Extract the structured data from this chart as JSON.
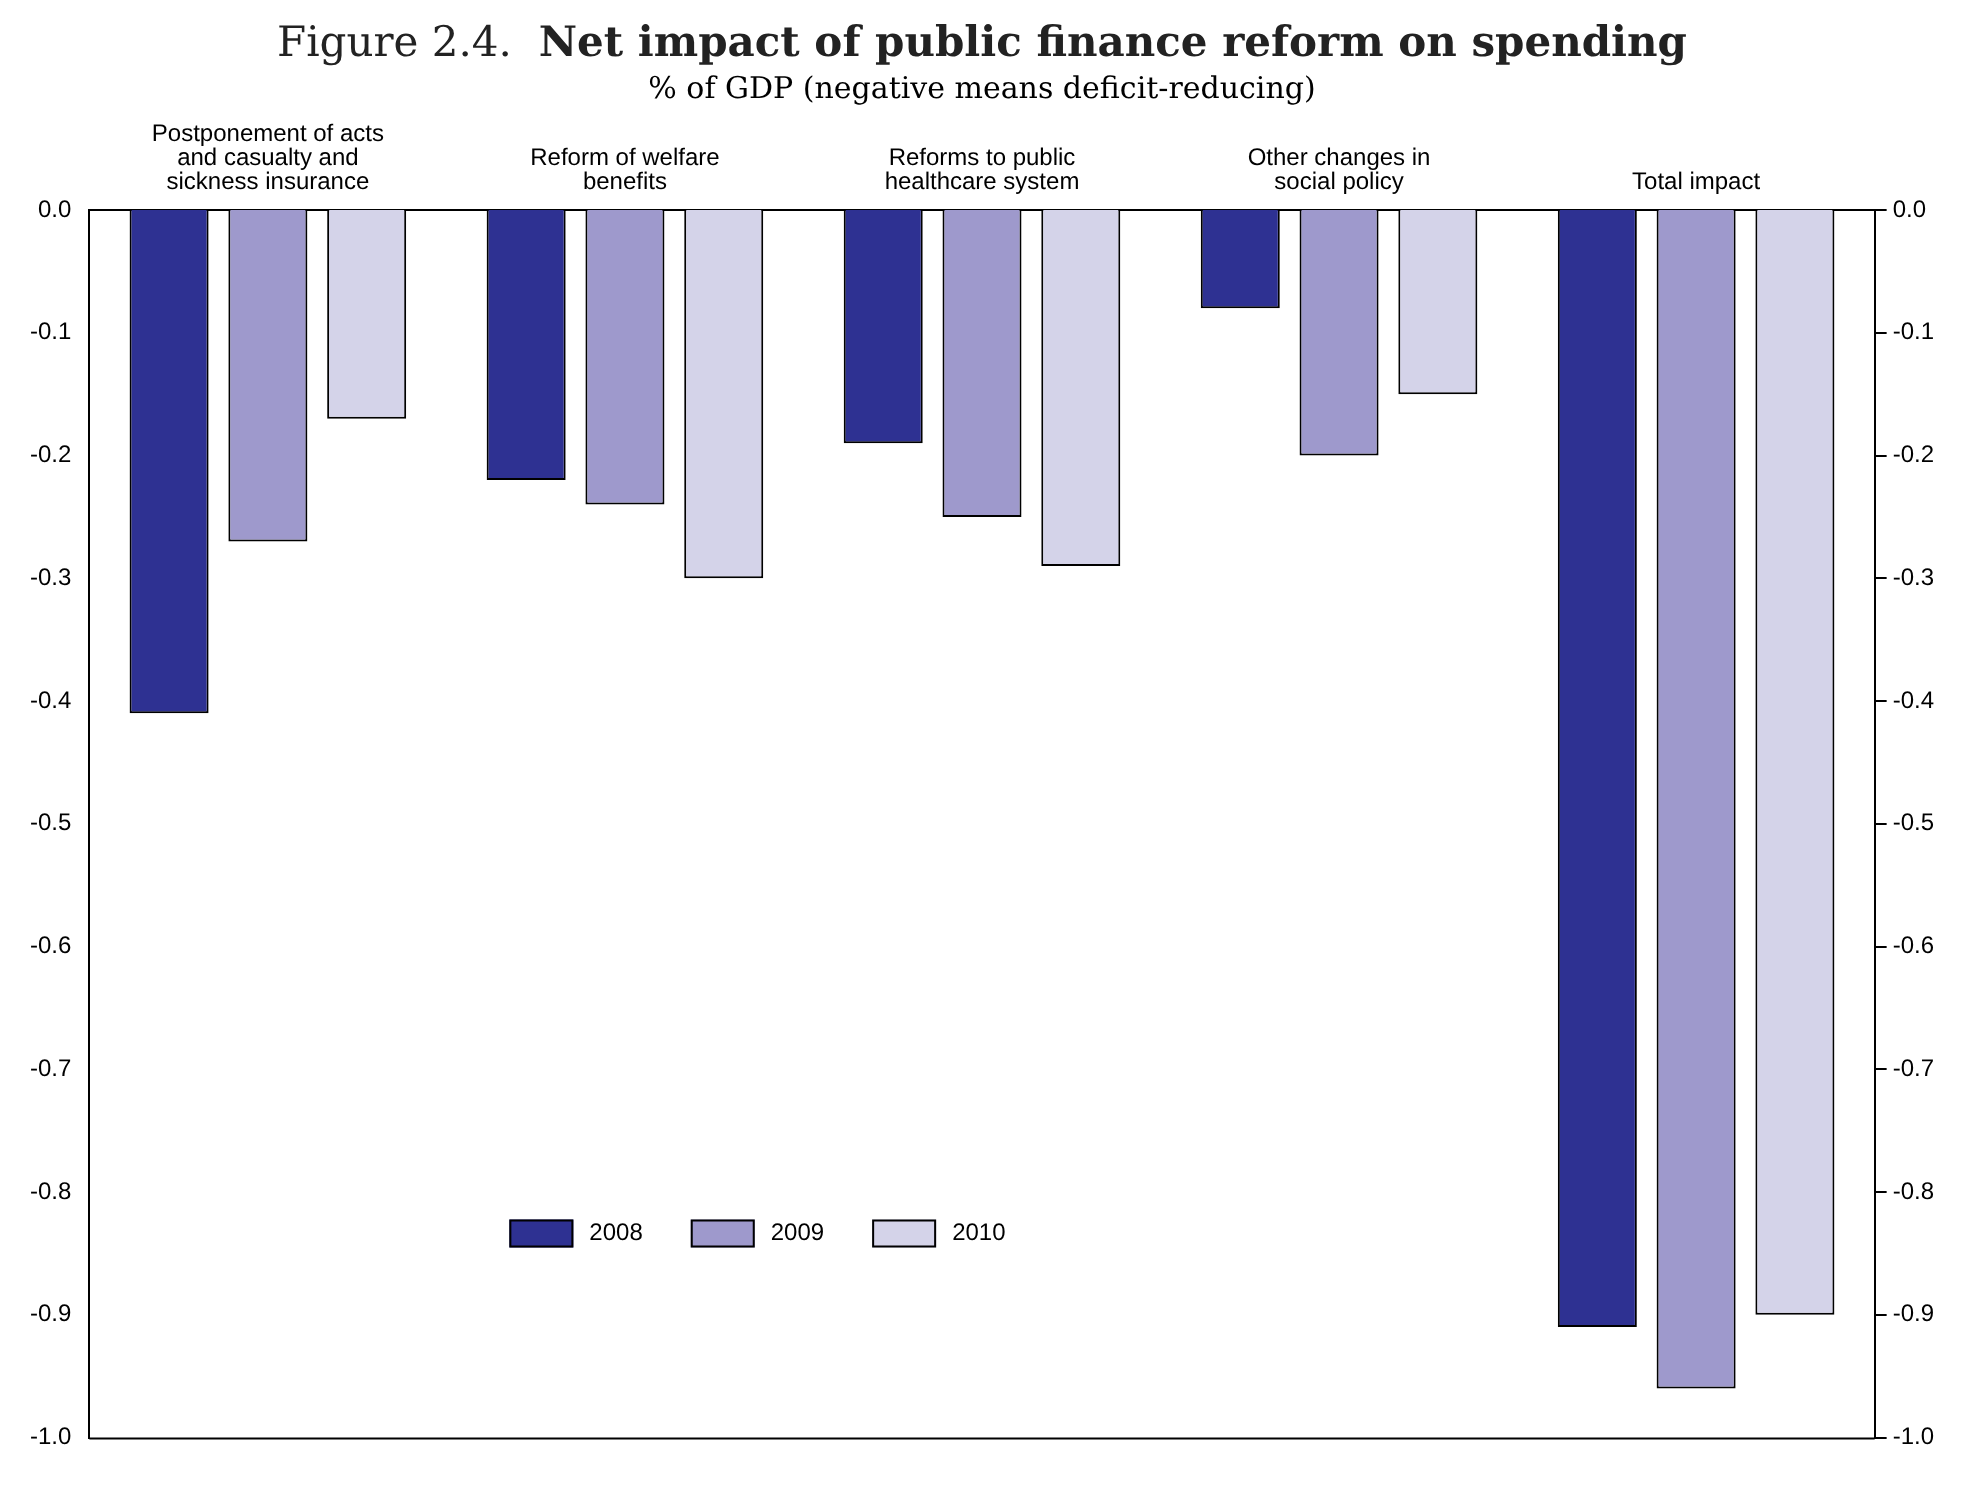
{
  "chart_data": {
    "type": "bar",
    "title": "Figure 2.4. Net impact of public finance reform on spending",
    "subtitle": "% of GDP (negative means deficit-reducing)",
    "categories": [
      "Postponement of acts and casualty and sickness insurance",
      "Reform of welfare benefits",
      "Reforms to public healthcare system",
      "Other changes in social policy",
      "Total impact"
    ],
    "series": [
      {
        "name": "2008",
        "color": "#2e3192",
        "values": [
          -0.41,
          -0.22,
          -0.19,
          -0.08,
          -0.91
        ]
      },
      {
        "name": "2009",
        "color": "#9e99cc",
        "values": [
          -0.27,
          -0.24,
          -0.25,
          -0.2,
          -0.96
        ]
      },
      {
        "name": "2010",
        "color": "#d4d3e9",
        "values": [
          -0.17,
          -0.3,
          -0.29,
          -0.15,
          -0.9
        ]
      }
    ],
    "ylim": [
      -1.0,
      0.0
    ],
    "yticks": [
      {
        "value": 0,
        "label": "0.0"
      },
      {
        "value": -0.1,
        "label": "-0.1"
      },
      {
        "value": -0.2,
        "label": "-0.2"
      },
      {
        "value": -0.3,
        "label": "-0.3"
      },
      {
        "value": -0.4,
        "label": "-0.4"
      },
      {
        "value": -0.5,
        "label": "-0.5"
      },
      {
        "value": -0.6,
        "label": "-0.6"
      },
      {
        "value": -0.7,
        "label": "-0.7"
      },
      {
        "value": -0.8,
        "label": "-0.8"
      },
      {
        "value": -0.9,
        "label": "-0.9"
      },
      {
        "value": -1.0,
        "label": "-1.0"
      }
    ],
    "y2lim": [
      -1.0,
      0.0
    ],
    "y2ticks": [
      {
        "value": 0,
        "label": "0.0"
      },
      {
        "value": -0.1,
        "label": "-0.1"
      },
      {
        "value": -0.2,
        "label": "-0.2"
      },
      {
        "value": -0.3,
        "label": "-0.3"
      },
      {
        "value": -0.4,
        "label": "-0.4"
      },
      {
        "value": -0.5,
        "label": "-0.5"
      },
      {
        "value": -0.6,
        "label": "-0.6"
      },
      {
        "value": -0.7,
        "label": "-0.7"
      },
      {
        "value": -0.8,
        "label": "-0.8"
      },
      {
        "value": -0.9,
        "label": "-0.9"
      },
      {
        "value": -1.0,
        "label": "-1.0"
      }
    ],
    "grid": false,
    "legend": "bottom left"
  }
}
